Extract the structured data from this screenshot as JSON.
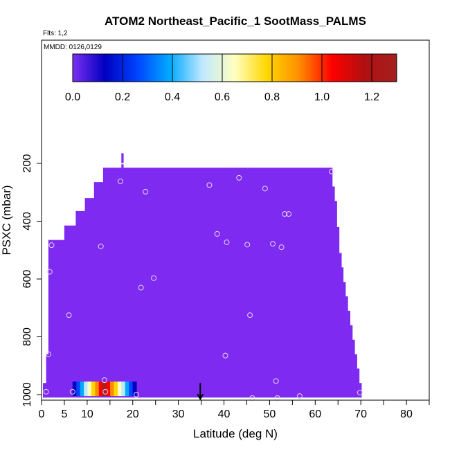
{
  "chart_data": {
    "type": "heatmap",
    "title": "ATOM2 Northeast_Pacific_1 SootMass_PALMS",
    "flights_label": "Flts: 1,2",
    "dates_label": "MMDD: 0126,0129",
    "xlabel": "Latitude (deg N)",
    "ylabel": "PSXC (mbar)",
    "xlim": [
      0,
      85
    ],
    "ylim": [
      1010,
      100
    ],
    "x_ticks": [
      0,
      5,
      10,
      20,
      30,
      40,
      50,
      60,
      70,
      80
    ],
    "x_minor_ticks": [
      15,
      25,
      35,
      45,
      55,
      65,
      75,
      85
    ],
    "y_ticks": [
      200,
      400,
      600,
      800,
      1000
    ],
    "colorbar": {
      "min": 0.0,
      "max": 1.3,
      "ticks": [
        0.0,
        0.2,
        0.4,
        0.6,
        0.8,
        1.0,
        1.2
      ],
      "tick_labels": [
        "0.0",
        "0.2",
        "0.4",
        "0.6",
        "0.8",
        "1.0",
        "1.2"
      ],
      "colors": [
        "#7b2ff0",
        "#0000c0",
        "#0044ff",
        "#00aaff",
        "#bfe8ff",
        "#ffffc0",
        "#ffd700",
        "#ff8c00",
        "#ff0000",
        "#b01010",
        "#a52020"
      ]
    },
    "field_color": "#7f2af0",
    "field_value": 0.0,
    "field_boundary": {
      "top_steps": [
        {
          "lat_from": 2,
          "lat_to": 3.5,
          "p_top": 465
        },
        {
          "lat_from": 3.5,
          "lat_to": 5,
          "p_top": 465
        },
        {
          "lat_from": 5,
          "lat_to": 7.5,
          "p_top": 415
        },
        {
          "lat_from": 7.5,
          "lat_to": 9.5,
          "p_top": 365
        },
        {
          "lat_from": 9.5,
          "lat_to": 11.5,
          "p_top": 320
        },
        {
          "lat_from": 11.5,
          "lat_to": 13.5,
          "p_top": 265
        },
        {
          "lat_from": 13.5,
          "lat_to": 63.5,
          "p_top": 215
        },
        {
          "lat_from": 63.5,
          "lat_to": 64.5,
          "p_top": 215
        }
      ],
      "left_edge": [
        {
          "p_from": 465,
          "p_to": 860,
          "lat": 1.5
        },
        {
          "p_from": 860,
          "p_to": 960,
          "lat": 1.0
        },
        {
          "p_from": 960,
          "p_to": 1010,
          "lat": 0.3
        }
      ],
      "right_edge": [
        {
          "p_from": 215,
          "p_to": 280,
          "lat": 63.8
        },
        {
          "p_from": 280,
          "p_to": 330,
          "lat": 64.3
        },
        {
          "p_from": 330,
          "p_to": 420,
          "lat": 64.8
        },
        {
          "p_from": 420,
          "p_to": 510,
          "lat": 65.3
        },
        {
          "p_from": 510,
          "p_to": 560,
          "lat": 65.8
        },
        {
          "p_from": 560,
          "p_to": 610,
          "lat": 66.2
        },
        {
          "p_from": 610,
          "p_to": 660,
          "lat": 66.7
        },
        {
          "p_from": 660,
          "p_to": 710,
          "lat": 67.2
        },
        {
          "p_from": 710,
          "p_to": 760,
          "lat": 67.7
        },
        {
          "p_from": 760,
          "p_to": 810,
          "lat": 68.2
        },
        {
          "p_from": 810,
          "p_to": 860,
          "lat": 68.7
        },
        {
          "p_from": 860,
          "p_to": 910,
          "lat": 69.2
        },
        {
          "p_from": 910,
          "p_to": 960,
          "lat": 69.7
        },
        {
          "p_from": 960,
          "p_to": 1010,
          "lat": 70.2
        }
      ],
      "spike": {
        "lat_from": 17.5,
        "lat_to": 18.0,
        "p_from": 165,
        "p_to": 215
      }
    },
    "inset_colorstrip": {
      "lat_from": 6.8,
      "lat_to": 20.8,
      "p_from": 955,
      "p_to": 1005
    },
    "sample_points": [
      {
        "x": 1.0,
        "y": 990
      },
      {
        "x": 1.5,
        "y": 860
      },
      {
        "x": 1.8,
        "y": 575
      },
      {
        "x": 2.2,
        "y": 483
      },
      {
        "x": 6.0,
        "y": 725
      },
      {
        "x": 6.8,
        "y": 990
      },
      {
        "x": 13.0,
        "y": 487
      },
      {
        "x": 13.8,
        "y": 950
      },
      {
        "x": 14.0,
        "y": 990
      },
      {
        "x": 17.3,
        "y": 262
      },
      {
        "x": 20.8,
        "y": 1000
      },
      {
        "x": 21.8,
        "y": 630
      },
      {
        "x": 22.8,
        "y": 298
      },
      {
        "x": 24.6,
        "y": 597
      },
      {
        "x": 36.8,
        "y": 275
      },
      {
        "x": 38.5,
        "y": 444
      },
      {
        "x": 40.6,
        "y": 473
      },
      {
        "x": 40.3,
        "y": 865
      },
      {
        "x": 43.3,
        "y": 250
      },
      {
        "x": 45.1,
        "y": 481
      },
      {
        "x": 45.7,
        "y": 725
      },
      {
        "x": 46.2,
        "y": 1012
      },
      {
        "x": 49.0,
        "y": 287
      },
      {
        "x": 50.7,
        "y": 478
      },
      {
        "x": 51.4,
        "y": 953
      },
      {
        "x": 51.7,
        "y": 1012
      },
      {
        "x": 52.6,
        "y": 490
      },
      {
        "x": 53.3,
        "y": 375
      },
      {
        "x": 54.2,
        "y": 375
      },
      {
        "x": 56.6,
        "y": 1005
      },
      {
        "x": 63.6,
        "y": 228
      },
      {
        "x": 69.8,
        "y": 993
      }
    ],
    "marker_arrow": {
      "lat": 34.8,
      "p_from": 960,
      "p_to": 1015
    }
  }
}
